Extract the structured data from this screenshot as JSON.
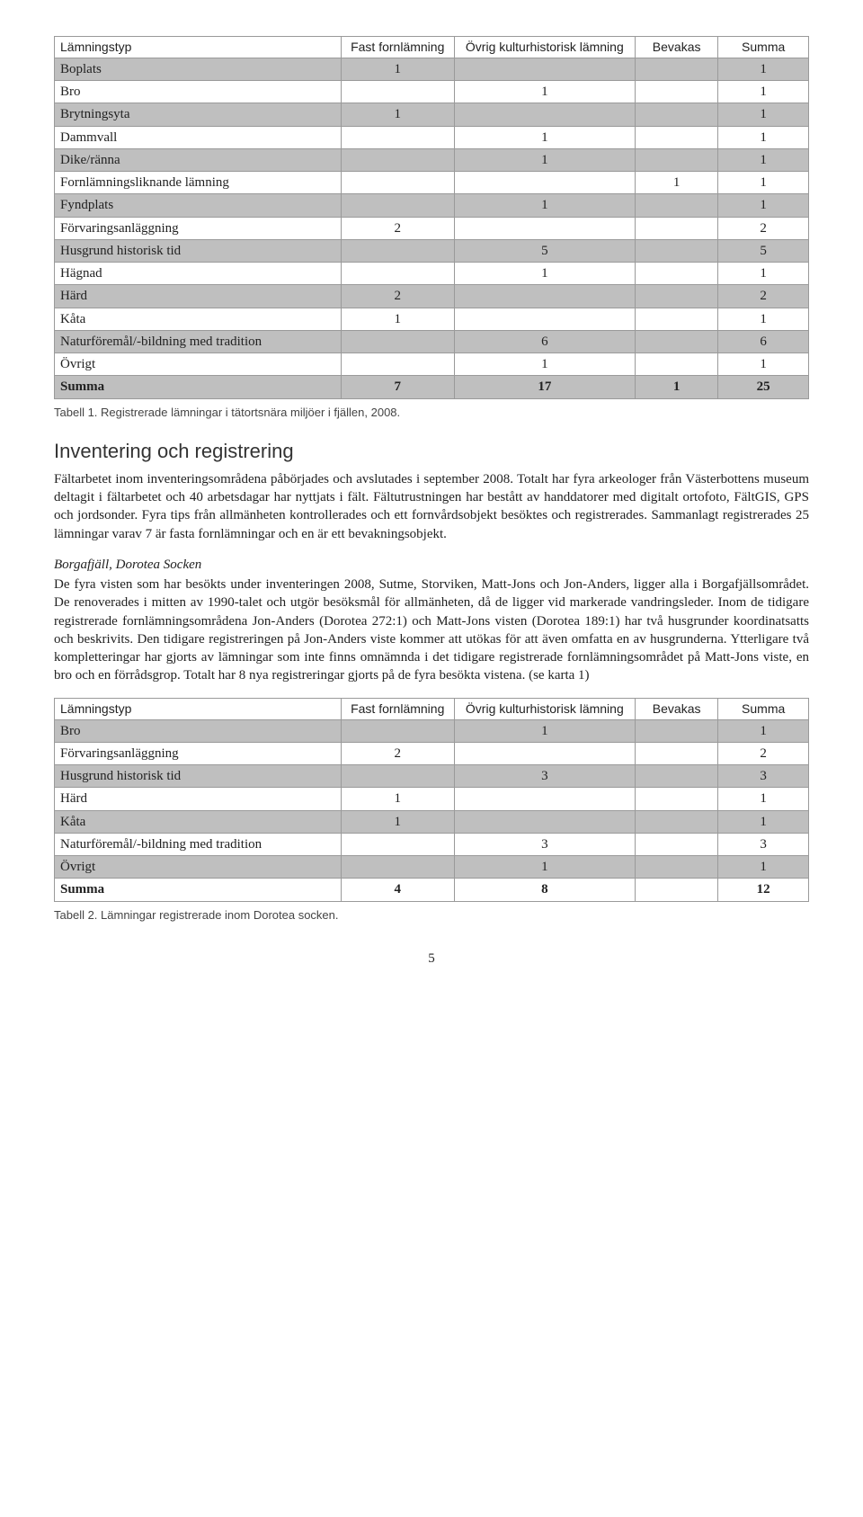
{
  "table1": {
    "header_row_bg": "#ffffff",
    "alt_row_bg": "#bfbfbf",
    "cell_border": "#9a9a9a",
    "columns": [
      "Lämningstyp",
      "Fast fornlämning",
      "Övrig kulturhistorisk lämning",
      "Bevakas",
      "Summa"
    ],
    "rows": [
      {
        "label": "Boplats",
        "c1": "1",
        "c2": "",
        "c3": "",
        "c4": "1",
        "shaded": true
      },
      {
        "label": "Bro",
        "c1": "",
        "c2": "1",
        "c3": "",
        "c4": "1",
        "shaded": false
      },
      {
        "label": "Brytningsyta",
        "c1": "1",
        "c2": "",
        "c3": "",
        "c4": "1",
        "shaded": true
      },
      {
        "label": "Dammvall",
        "c1": "",
        "c2": "1",
        "c3": "",
        "c4": "1",
        "shaded": false
      },
      {
        "label": "Dike/ränna",
        "c1": "",
        "c2": "1",
        "c3": "",
        "c4": "1",
        "shaded": true
      },
      {
        "label": "Fornlämningsliknande lämning",
        "c1": "",
        "c2": "",
        "c3": "1",
        "c4": "1",
        "shaded": false
      },
      {
        "label": "Fyndplats",
        "c1": "",
        "c2": "1",
        "c3": "",
        "c4": "1",
        "shaded": true
      },
      {
        "label": "Förvaringsanläggning",
        "c1": "2",
        "c2": "",
        "c3": "",
        "c4": "2",
        "shaded": false
      },
      {
        "label": "Husgrund historisk tid",
        "c1": "",
        "c2": "5",
        "c3": "",
        "c4": "5",
        "shaded": true
      },
      {
        "label": "Hägnad",
        "c1": "",
        "c2": "1",
        "c3": "",
        "c4": "1",
        "shaded": false
      },
      {
        "label": "Härd",
        "c1": "2",
        "c2": "",
        "c3": "",
        "c4": "2",
        "shaded": true
      },
      {
        "label": "Kåta",
        "c1": "1",
        "c2": "",
        "c3": "",
        "c4": "1",
        "shaded": false
      },
      {
        "label": "Naturföremål/-bildning med tradition",
        "c1": "",
        "c2": "6",
        "c3": "",
        "c4": "6",
        "shaded": true
      },
      {
        "label": "Övrigt",
        "c1": "",
        "c2": "1",
        "c3": "",
        "c4": "1",
        "shaded": false
      }
    ],
    "sum_row": {
      "label": "Summa",
      "c1": "7",
      "c2": "17",
      "c3": "1",
      "c4": "25",
      "shaded": true
    }
  },
  "table1_caption": "Tabell 1. Registrerade lämningar i tätortsnära miljöer i fjällen, 2008.",
  "section_heading": "Inventering och registrering",
  "para1": "Fältarbetet inom inventeringsområdena påbörjades och avslutades i september 2008. Totalt har fyra arkeologer från Västerbottens museum deltagit i fältarbetet och 40 arbetsdagar har nyttjats i fält. Fältutrustningen har bestått av handdatorer med digitalt ortofoto, FältGIS, GPS och jordsonder. Fyra tips från allmänheten kontrollerades och ett fornvårdsobjekt besöktes och registrerades. Sammanlagt registrerades 25 lämningar varav 7 är fasta fornlämningar och en är ett bevakningsobjekt.",
  "subheading": "Borgafjäll, Dorotea Socken",
  "para2": "De fyra visten som har besökts under inventeringen 2008, Sutme, Storviken, Matt-Jons och Jon-Anders, ligger alla i Borgafjällsområdet. De renoverades i mitten av 1990-talet och utgör besöksmål för allmänheten, då de ligger vid markerade vandringsleder. Inom de tidigare registrerade fornlämningsområdena Jon-Anders (Dorotea 272:1) och Matt-Jons visten (Dorotea 189:1) har två husgrunder koordinatsatts och beskrivits. Den tidigare registreringen på Jon-Anders viste kommer att utökas för att även omfatta en av husgrunderna. Ytterligare två kompletteringar har gjorts av lämningar som inte finns omnämnda i det tidigare registrerade fornlämningsområdet på Matt-Jons viste, en bro och en förrådsgrop. Totalt har 8 nya registreringar gjorts på de fyra besökta vistena. (se karta 1)",
  "table2": {
    "header_row_bg": "#ffffff",
    "alt_row_bg": "#bfbfbf",
    "cell_border": "#9a9a9a",
    "columns": [
      "Lämningstyp",
      "Fast fornlämning",
      "Övrig kulturhistorisk lämning",
      "Bevakas",
      "Summa"
    ],
    "rows": [
      {
        "label": "Bro",
        "c1": "",
        "c2": "1",
        "c3": "",
        "c4": "1",
        "shaded": true
      },
      {
        "label": "Förvaringsanläggning",
        "c1": "2",
        "c2": "",
        "c3": "",
        "c4": "2",
        "shaded": false
      },
      {
        "label": "Husgrund historisk tid",
        "c1": "",
        "c2": "3",
        "c3": "",
        "c4": "3",
        "shaded": true
      },
      {
        "label": "Härd",
        "c1": "1",
        "c2": "",
        "c3": "",
        "c4": "1",
        "shaded": false
      },
      {
        "label": "Kåta",
        "c1": "1",
        "c2": "",
        "c3": "",
        "c4": "1",
        "shaded": true
      },
      {
        "label": "Naturföremål/-bildning med tradition",
        "c1": "",
        "c2": "3",
        "c3": "",
        "c4": "3",
        "shaded": false
      },
      {
        "label": "Övrigt",
        "c1": "",
        "c2": "1",
        "c3": "",
        "c4": "1",
        "shaded": true
      }
    ],
    "sum_row": {
      "label": "Summa",
      "c1": "4",
      "c2": "8",
      "c3": "",
      "c4": "12",
      "shaded": false
    }
  },
  "table2_caption": "Tabell 2. Lämningar registrerade inom Dorotea socken.",
  "page_number": "5",
  "col_widths": [
    "38%",
    "15%",
    "24%",
    "11%",
    "12%"
  ]
}
